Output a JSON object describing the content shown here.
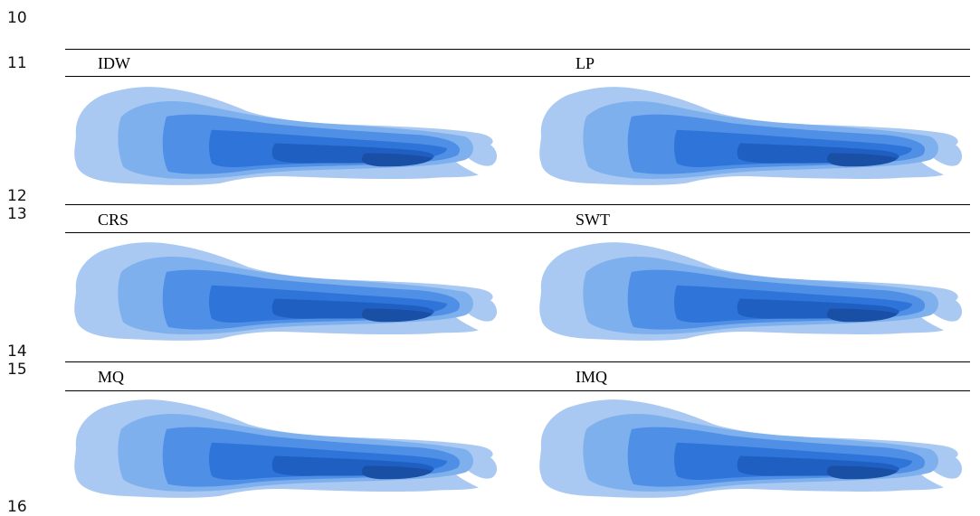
{
  "line_numbers": {
    "n10": "10",
    "n11": "11",
    "n12": "12",
    "n13": "13",
    "n14": "14",
    "n15": "15",
    "n16": "16"
  },
  "panels": {
    "idw": "IDW",
    "lp": "LP",
    "crs": "CRS",
    "swt": "SWT",
    "mq": "MQ",
    "imq": "IMQ"
  },
  "colors": {
    "level1": "#a9c9f2",
    "level2": "#7fb0ee",
    "level3": "#4f8fe6",
    "level4": "#2f74d8",
    "level5": "#1f5fc2",
    "level6": "#1a4fa6",
    "rule": "#000000"
  }
}
